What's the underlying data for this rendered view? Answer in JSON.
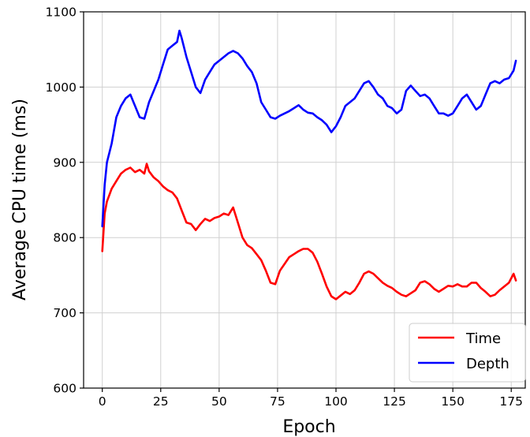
{
  "chart_data": {
    "type": "line",
    "title": "",
    "xlabel": "Epoch",
    "ylabel": "Average CPU time (ms)",
    "xlim": [
      -8,
      181
    ],
    "ylim": [
      600,
      1100
    ],
    "xticks": [
      0,
      25,
      50,
      75,
      100,
      125,
      150,
      175
    ],
    "yticks": [
      600,
      700,
      800,
      900,
      1000,
      1100
    ],
    "grid": true,
    "legend_position": "bottom-right",
    "series": [
      {
        "name": "Time",
        "color": "#ff0000",
        "x": [
          0,
          1,
          2,
          4,
          6,
          8,
          10,
          12,
          14,
          16,
          18,
          19,
          20,
          22,
          24,
          26,
          28,
          30,
          32,
          34,
          36,
          38,
          40,
          42,
          44,
          46,
          48,
          50,
          52,
          54,
          56,
          58,
          60,
          62,
          64,
          66,
          68,
          70,
          72,
          74,
          76,
          78,
          80,
          82,
          84,
          86,
          88,
          90,
          92,
          94,
          96,
          98,
          100,
          102,
          104,
          106,
          108,
          110,
          112,
          114,
          116,
          118,
          120,
          122,
          124,
          126,
          128,
          130,
          132,
          134,
          136,
          138,
          140,
          142,
          144,
          146,
          148,
          150,
          152,
          154,
          156,
          158,
          160,
          162,
          164,
          166,
          168,
          170,
          172,
          174,
          176,
          177
        ],
        "values": [
          782,
          832,
          848,
          865,
          875,
          885,
          890,
          893,
          887,
          890,
          885,
          898,
          888,
          880,
          875,
          868,
          863,
          860,
          852,
          836,
          820,
          818,
          810,
          818,
          825,
          822,
          826,
          828,
          832,
          830,
          840,
          820,
          800,
          790,
          786,
          778,
          770,
          756,
          740,
          738,
          756,
          765,
          774,
          778,
          782,
          785,
          785,
          780,
          768,
          752,
          735,
          722,
          718,
          723,
          728,
          725,
          730,
          740,
          752,
          755,
          752,
          746,
          740,
          736,
          733,
          728,
          724,
          722,
          726,
          730,
          740,
          742,
          738,
          732,
          728,
          732,
          736,
          735,
          738,
          735,
          735,
          740,
          740,
          733,
          728,
          722,
          724,
          730,
          735,
          740,
          752,
          743
        ]
      },
      {
        "name": "Depth",
        "color": "#0000ff",
        "x": [
          0,
          1,
          2,
          4,
          6,
          8,
          10,
          12,
          14,
          16,
          18,
          20,
          22,
          24,
          26,
          28,
          30,
          32,
          33,
          34,
          36,
          38,
          40,
          42,
          44,
          46,
          48,
          50,
          52,
          54,
          56,
          58,
          60,
          62,
          64,
          66,
          68,
          70,
          72,
          74,
          76,
          78,
          80,
          82,
          84,
          86,
          88,
          90,
          92,
          94,
          96,
          98,
          100,
          102,
          104,
          106,
          108,
          110,
          112,
          114,
          116,
          118,
          120,
          122,
          124,
          126,
          128,
          130,
          132,
          134,
          136,
          138,
          140,
          142,
          144,
          146,
          148,
          150,
          152,
          154,
          156,
          158,
          160,
          162,
          164,
          166,
          168,
          170,
          172,
          174,
          176,
          177
        ],
        "values": [
          815,
          870,
          900,
          925,
          960,
          975,
          985,
          990,
          975,
          960,
          958,
          980,
          995,
          1010,
          1030,
          1050,
          1055,
          1060,
          1075,
          1065,
          1040,
          1020,
          1000,
          992,
          1010,
          1020,
          1030,
          1035,
          1040,
          1045,
          1048,
          1045,
          1038,
          1028,
          1020,
          1005,
          980,
          970,
          960,
          958,
          962,
          965,
          968,
          972,
          976,
          970,
          966,
          965,
          960,
          956,
          950,
          940,
          948,
          960,
          975,
          980,
          985,
          995,
          1005,
          1008,
          1000,
          990,
          985,
          975,
          972,
          965,
          970,
          995,
          1002,
          995,
          988,
          990,
          985,
          975,
          965,
          965,
          962,
          965,
          975,
          985,
          990,
          980,
          970,
          975,
          990,
          1005,
          1008,
          1005,
          1010,
          1012,
          1022,
          1035
        ]
      }
    ]
  }
}
